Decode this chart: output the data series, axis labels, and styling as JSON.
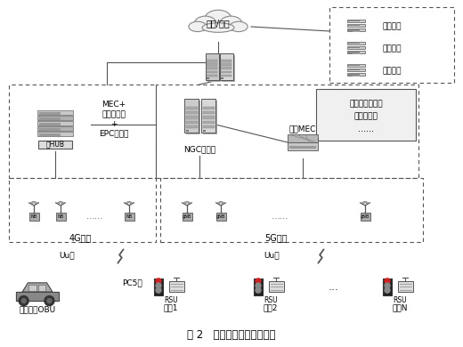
{
  "title": "图 2   綠波通行系统组网架构",
  "bg_color": "#ffffff",
  "cloud_text": "公网/专网",
  "top_right_labels": [
    "公交系统",
    "数据中心",
    "应用平台"
  ],
  "left_box_labels": [
    "MEC+",
    "应用服务器",
    "+",
    "EPC核心网"
  ],
  "hub_label": "光HUB",
  "ngc_label": "NGC核心网",
  "edge_label": "边缘MEC",
  "traffic_box_labels": [
    "红绻灯控制策略",
    "高精度地图",
    "......"
  ],
  "g4_label": "4G基站",
  "g5_label": "5G基站",
  "uu_label": "Uu口",
  "pc5_label": "PC5口",
  "car_label": "车载单元OBU",
  "rsu_label": "RSU",
  "intersections": [
    "路口1",
    "路口2",
    "路口N"
  ],
  "dots": "......",
  "dots2": "..."
}
